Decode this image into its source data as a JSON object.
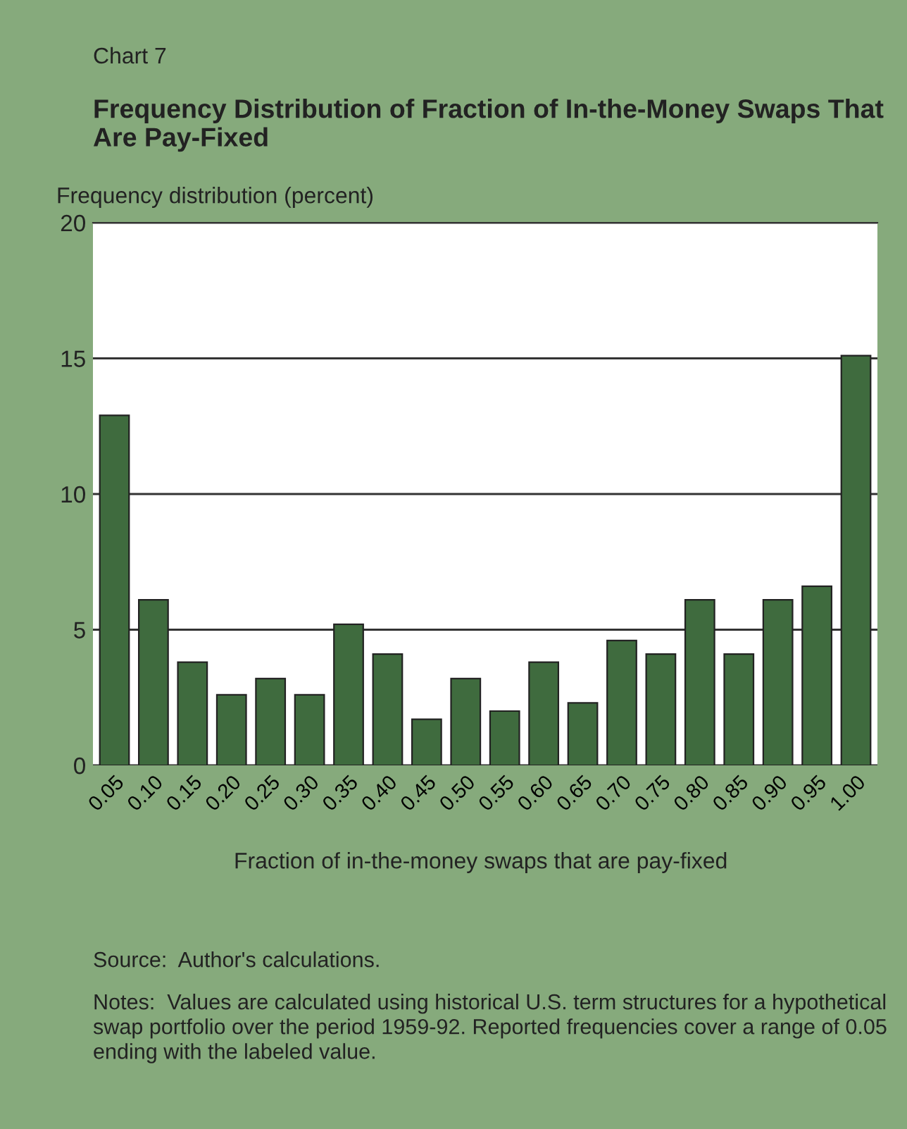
{
  "chart_data": {
    "type": "bar",
    "subtitle": "Chart 7",
    "title": "Frequency Distribution of Fraction of In-the-Money Swaps That Are Pay-Fixed",
    "ylabel": "Frequency distribution (percent)",
    "xlabel": "Fraction of in-the-money swaps that are pay-fixed",
    "categories": [
      "0.05",
      "0.10",
      "0.15",
      "0.20",
      "0.25",
      "0.30",
      "0.35",
      "0.40",
      "0.45",
      "0.50",
      "0.55",
      "0.60",
      "0.65",
      "0.70",
      "0.75",
      "0.80",
      "0.85",
      "0.90",
      "0.95",
      "1.00"
    ],
    "values": [
      12.9,
      6.1,
      3.8,
      2.6,
      3.2,
      2.6,
      5.2,
      4.1,
      1.7,
      3.2,
      2.0,
      3.8,
      2.3,
      4.6,
      4.1,
      6.1,
      4.1,
      6.1,
      6.6,
      15.1
    ],
    "color": "#3f6b3e",
    "ylim": [
      0,
      20
    ],
    "yticks": [
      0,
      5,
      10,
      15,
      20
    ],
    "grid": "y",
    "annotations": [
      "Source:  Author's calculations.",
      "Notes:  Values are calculated using historical U.S. term structures for a hypothetical swap portfolio over the period 1959-92. Reported frequencies cover a range of 0.05 ending with the labeled value."
    ]
  }
}
